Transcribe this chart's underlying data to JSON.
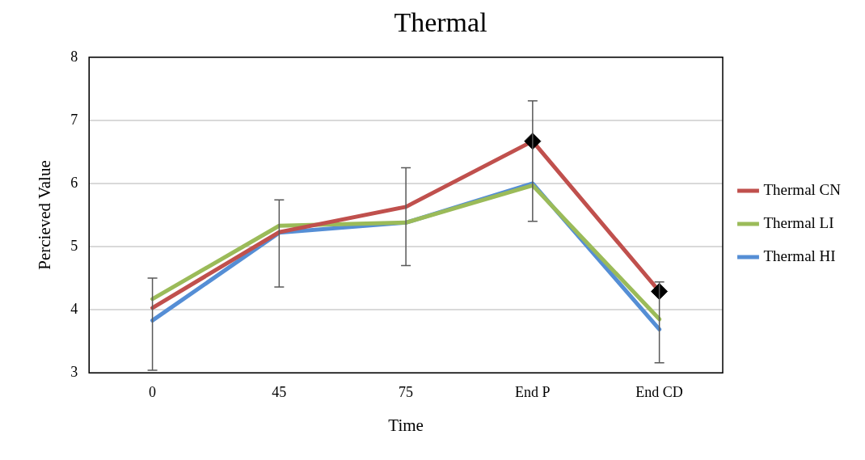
{
  "chart_data": {
    "type": "line",
    "title": "Thermal",
    "xlabel": "Time",
    "ylabel": "Percieved Value",
    "categories": [
      "0",
      "45",
      "75",
      "End P",
      "End CD"
    ],
    "ylim": [
      3,
      8
    ],
    "yticks": [
      3,
      4,
      5,
      6,
      7,
      8
    ],
    "grid": "y",
    "legend": "right",
    "marker": "none",
    "series": [
      {
        "name": "Thermal CN",
        "color": "#c0504d",
        "values": [
          4.03,
          5.23,
          5.63,
          6.67,
          4.29
        ]
      },
      {
        "name": "Thermal LI",
        "color": "#9bbb59",
        "values": [
          4.17,
          5.33,
          5.38,
          5.97,
          3.85
        ]
      },
      {
        "name": "Thermal HI",
        "color": "#558ed5",
        "values": [
          3.83,
          5.22,
          5.38,
          6.0,
          3.69
        ],
        "errors": [
          [
            3.04,
            4.5
          ],
          [
            4.36,
            5.74
          ],
          [
            4.7,
            6.25
          ],
          [
            5.4,
            7.31
          ],
          [
            3.16,
            4.44
          ]
        ]
      },
      {
        "type": "scatter",
        "color": "#000000",
        "marker": "diamond",
        "x": [
          "End P",
          "End CD"
        ],
        "values": [
          6.67,
          4.29
        ]
      }
    ]
  }
}
